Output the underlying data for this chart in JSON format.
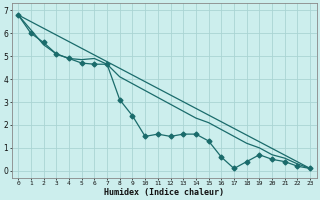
{
  "xlabel": "Humidex (Indice chaleur)",
  "background_color": "#cceeed",
  "line_color": "#1a6b6b",
  "grid_color": "#aad4d3",
  "xlim": [
    -0.5,
    23.5
  ],
  "ylim": [
    -0.3,
    7.3
  ],
  "xticks": [
    0,
    1,
    2,
    3,
    4,
    5,
    6,
    7,
    8,
    9,
    10,
    11,
    12,
    13,
    14,
    15,
    16,
    17,
    18,
    19,
    20,
    21,
    22,
    23
  ],
  "yticks": [
    0,
    1,
    2,
    3,
    4,
    5,
    6,
    7
  ],
  "series1_x": [
    0,
    1,
    2,
    3,
    4,
    5,
    6,
    7,
    8,
    9,
    10,
    11,
    12,
    13,
    14,
    15,
    16,
    17,
    18,
    19,
    20,
    21,
    22,
    23
  ],
  "series1_y": [
    6.8,
    6.0,
    5.6,
    5.1,
    4.9,
    4.7,
    4.65,
    4.65,
    3.1,
    2.4,
    1.5,
    1.6,
    1.5,
    1.6,
    1.6,
    1.3,
    0.6,
    0.1,
    0.4,
    0.7,
    0.5,
    0.4,
    0.2,
    0.1
  ],
  "series2_x": [
    0,
    2,
    3,
    4,
    5,
    6,
    7,
    8,
    9,
    10,
    11,
    12,
    13,
    14,
    15,
    16,
    17,
    18,
    19,
    20,
    21,
    22,
    23
  ],
  "series2_y": [
    6.8,
    5.5,
    5.1,
    4.9,
    4.85,
    4.9,
    4.65,
    4.1,
    3.8,
    3.5,
    3.2,
    2.9,
    2.6,
    2.3,
    2.1,
    1.8,
    1.5,
    1.2,
    1.0,
    0.7,
    0.55,
    0.3,
    0.1
  ],
  "series3_x": [
    0,
    23
  ],
  "series3_y": [
    6.8,
    0.1
  ],
  "spine_color": "#888888"
}
